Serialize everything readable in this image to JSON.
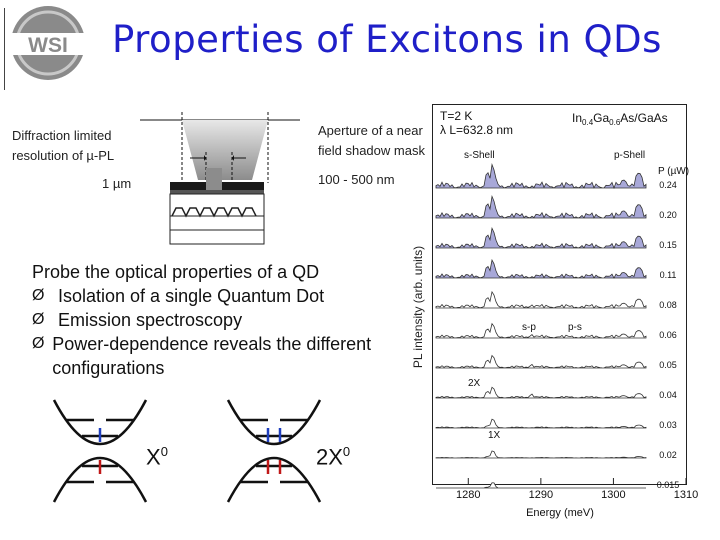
{
  "slide": {
    "title": "Properties of Excitons in QDs",
    "logo_text": "WSI"
  },
  "schematic": {
    "diffraction_line1": "Diffraction limited",
    "diffraction_line2": "resolution of µ-PL",
    "size_1um": "1 µm",
    "aperture_line1": "Aperture of a near",
    "aperture_line2": "field shadow mask",
    "aperture_size": "100 - 500 nm"
  },
  "body": {
    "intro": "Probe the optical properties of a QD",
    "bullets": [
      "Isolation of a single Quantum Dot",
      "Emission spectroscopy",
      "Power-dependence reveals the different configurations"
    ]
  },
  "states": {
    "exciton": "X",
    "exciton_sup": "0",
    "biexciton": "2X",
    "biexciton_sup": "0"
  },
  "spectrum": {
    "temperature": "T=2 K",
    "laser": "λ L=632.8 nm",
    "material_prefix": "In",
    "material_in_sub": "0.4",
    "material_ga": "Ga",
    "material_ga_sub": "0.6",
    "material_suffix": "As/GaAs",
    "s_shell": "s-Shell",
    "p_shell": "p-Shell",
    "power_label": "P (µW)",
    "powers": [
      "0.24",
      "0.20",
      "0.15",
      "0.11",
      "0.08",
      "0.06",
      "0.05",
      "0.04",
      "0.03",
      "0.02",
      "0.015"
    ],
    "sp_label": "s-p",
    "ps_label": "p-s",
    "x2_label": "2X",
    "x1_label": "1X",
    "ylabel": "PL intensity (arb. units)",
    "xlabel": "Energy (meV)",
    "xticks": [
      "1280",
      "1290",
      "1300",
      "1310"
    ],
    "xlim": [
      1275,
      1310
    ]
  }
}
